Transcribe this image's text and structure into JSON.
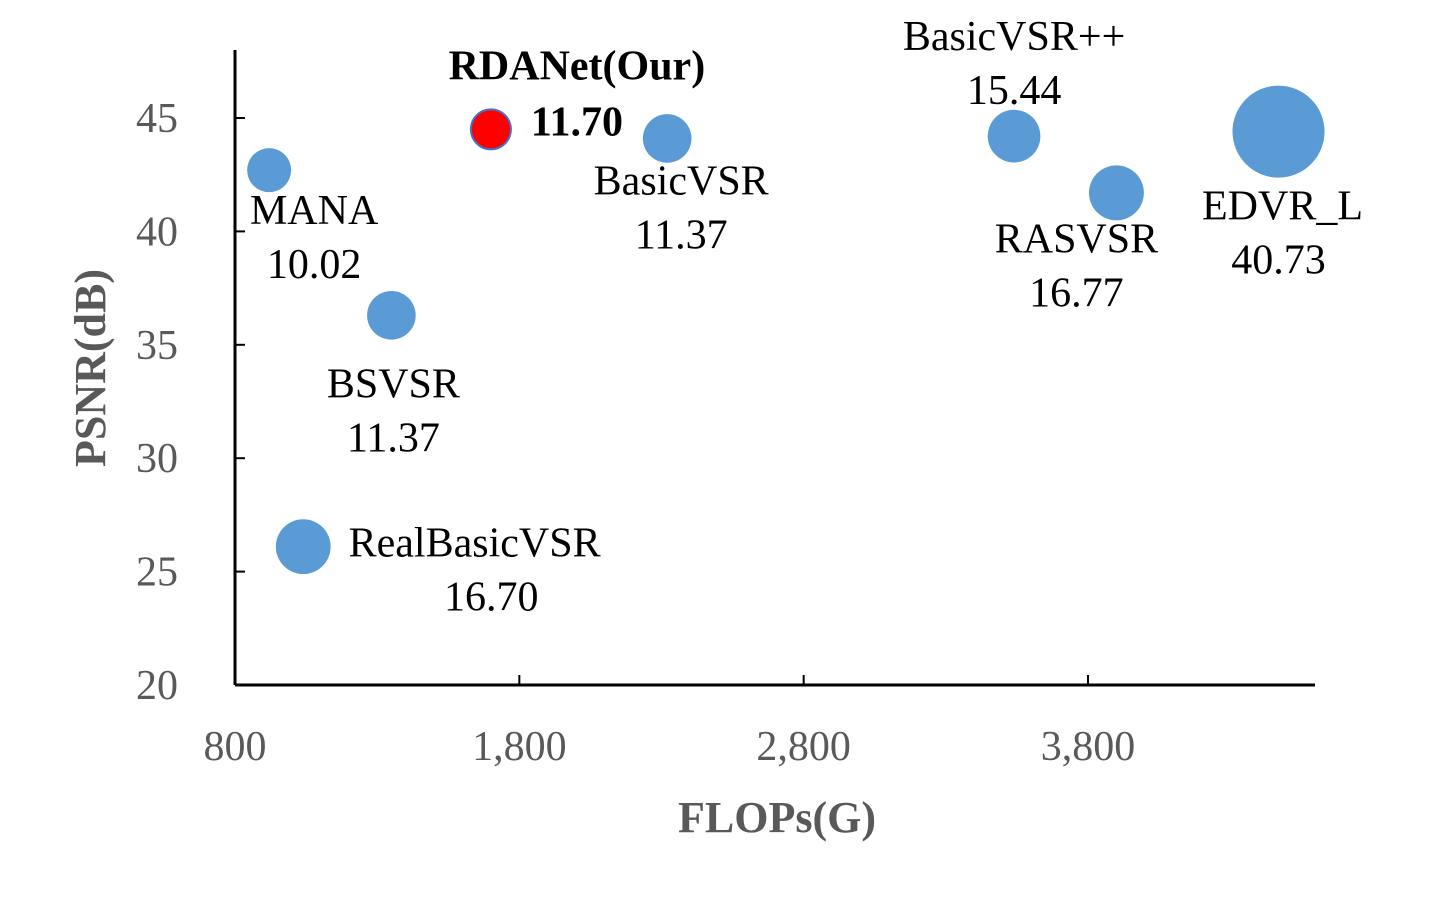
{
  "chart_data": {
    "type": "bubble",
    "xlabel": "FLOPs(G)",
    "ylabel": "PSNR(dB)",
    "xlim": [
      800,
      4600
    ],
    "ylim": [
      20,
      48
    ],
    "xticks": [
      800,
      1800,
      2800,
      3800
    ],
    "xtick_labels": [
      "800",
      "1,800",
      "2,800",
      "3,800"
    ],
    "yticks": [
      20,
      25,
      30,
      35,
      40,
      45
    ],
    "ytick_labels": [
      "20",
      "25",
      "30",
      "35",
      "40",
      "45"
    ],
    "grid": false,
    "colors": {
      "default": "#5B9BD5",
      "highlight": "#FF0000",
      "axis": "#000000",
      "text": "#595959"
    },
    "points": [
      {
        "name": "MANA",
        "size_label": "10.02",
        "x": 920,
        "y": 42.7,
        "size": 10.02,
        "highlight": false,
        "label_pos": "below"
      },
      {
        "name": "BSVSR",
        "size_label": "11.37",
        "x": 1350,
        "y": 36.3,
        "size": 11.37,
        "highlight": false,
        "label_pos": "below-right"
      },
      {
        "name": "RealBasicVSR",
        "size_label": "16.70",
        "x": 1040,
        "y": 26.1,
        "size": 16.7,
        "highlight": false,
        "label_pos": "right"
      },
      {
        "name": "RDANet(Our)",
        "size_label": "11.70",
        "x": 1700,
        "y": 44.5,
        "size": 11.7,
        "highlight": true,
        "label_pos": "above-right"
      },
      {
        "name": "BasicVSR",
        "size_label": "11.37",
        "x": 2320,
        "y": 44.1,
        "size": 11.37,
        "highlight": false,
        "label_pos": "below"
      },
      {
        "name": "BasicVSR++",
        "size_label": "15.44",
        "x": 3540,
        "y": 44.2,
        "size": 15.44,
        "highlight": false,
        "label_pos": "above"
      },
      {
        "name": "RASVSR",
        "size_label": "16.77",
        "x": 3900,
        "y": 41.7,
        "size": 16.77,
        "highlight": false,
        "label_pos": "below"
      },
      {
        "name": "EDVR_L",
        "size_label": "40.73",
        "x": 4470,
        "y": 44.4,
        "size": 40.73,
        "highlight": false,
        "label_pos": "below-right"
      }
    ]
  }
}
